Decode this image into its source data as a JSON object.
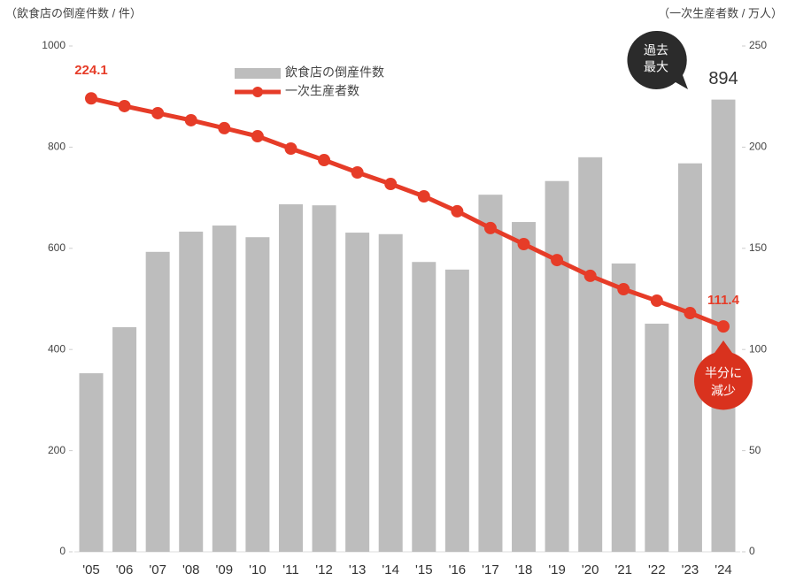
{
  "chart_data": {
    "type": "bar-line",
    "y_title": "（飲食店の倒産件数 / 件）",
    "y2_title": "（一次生産者数 / 万人）",
    "categories": [
      "'05",
      "'06",
      "'07",
      "'08",
      "'09",
      "'10",
      "'11",
      "'12",
      "'13",
      "'14",
      "'15",
      "'16",
      "'17",
      "'18",
      "'19",
      "'20",
      "'21",
      "'22",
      "'23",
      "'24"
    ],
    "series": [
      {
        "name": "飲食店の倒産件数",
        "type": "bar",
        "color": "#bdbdbd",
        "values": [
          353,
          444,
          593,
          633,
          645,
          622,
          687,
          685,
          631,
          628,
          573,
          558,
          706,
          652,
          733,
          780,
          570,
          451,
          768,
          894
        ]
      },
      {
        "name": "一次生産者数",
        "type": "line",
        "color": "#e63c28",
        "axis": "y2",
        "values": [
          224.1,
          220.3,
          216.8,
          213.3,
          209.4,
          205.4,
          199.3,
          193.6,
          187.5,
          181.8,
          175.7,
          168.3,
          160.0,
          152.1,
          144.2,
          136.4,
          129.8,
          124.1,
          118.0,
          111.4
        ]
      }
    ],
    "ylim": [
      0,
      1000
    ],
    "yticks": [
      0,
      200,
      400,
      600,
      800,
      1000
    ],
    "y2lim": [
      0,
      250
    ],
    "y2ticks": [
      0,
      50,
      100,
      150,
      200,
      250
    ],
    "annotations": [
      {
        "lines": [
          "過去",
          "最大"
        ]
      },
      {
        "lines": [
          "半分に",
          "減少"
        ]
      }
    ]
  }
}
